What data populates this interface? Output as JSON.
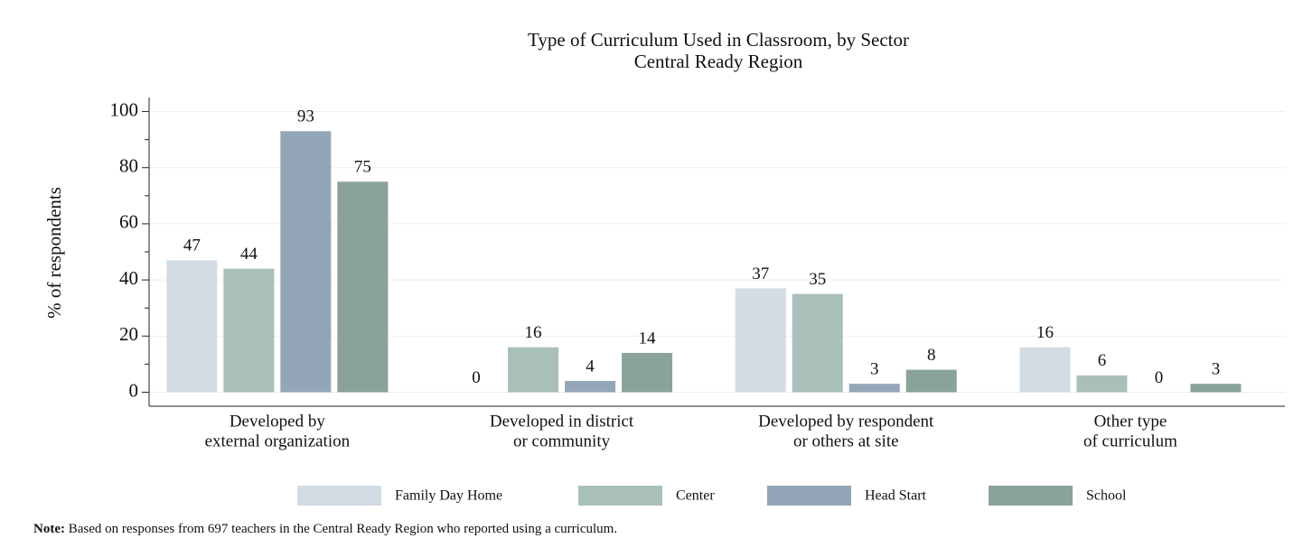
{
  "chart_data": {
    "type": "bar",
    "title": "Type of Curriculum Used in Classroom, by Sector",
    "subtitle": "Central Ready Region",
    "y_label": "% of respondents",
    "categories": [
      [
        "Developed by",
        "external organization"
      ],
      [
        "Developed in district",
        "or community"
      ],
      [
        "Developed by respondent",
        "or others at site"
      ],
      [
        "Other type",
        "of curriculum"
      ]
    ],
    "series": [
      {
        "name": "Family Day Home",
        "color": "#d3dce5",
        "values": [
          47,
          0,
          37,
          16
        ]
      },
      {
        "name": "Center",
        "color": "#a9bfba",
        "values": [
          44,
          16,
          35,
          6
        ]
      },
      {
        "name": "Head Start",
        "color": "#93a6b8",
        "values": [
          93,
          4,
          3,
          0
        ]
      },
      {
        "name": "School",
        "color": "#8aa398",
        "values": [
          75,
          14,
          8,
          3
        ]
      }
    ],
    "ylim": [
      -5,
      105
    ],
    "yticks": [
      0,
      20,
      40,
      60,
      80,
      100
    ],
    "yminor_ticks": [
      10,
      30,
      50,
      70,
      90
    ],
    "grid": true,
    "legend": "bottom",
    "note": {
      "label": "Note:",
      "text": "Based on responses from 697 teachers in the Central Ready Region who reported using a curriculum."
    }
  }
}
